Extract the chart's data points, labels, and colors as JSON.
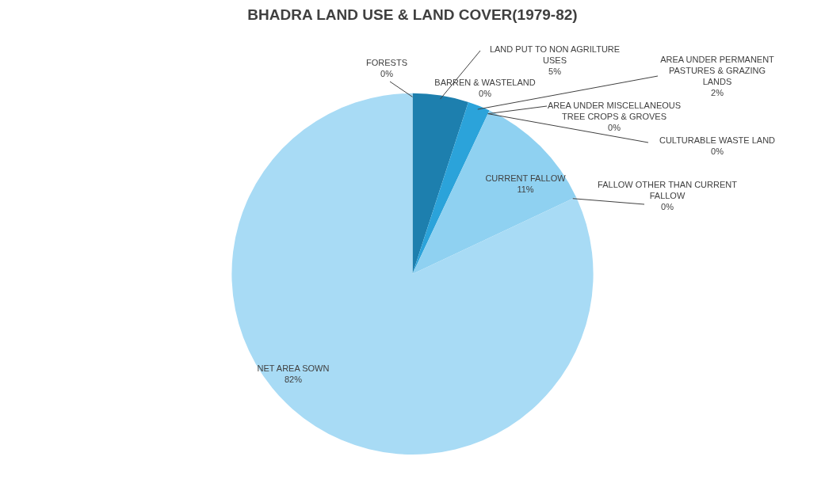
{
  "chart_data": {
    "type": "pie",
    "title": "BHADRA LAND USE & LAND COVER(1979-82)",
    "categories": [
      "FORESTS",
      "LAND PUT TO NON AGRILTURE USES",
      "BARREN & WASTELAND",
      "AREA UNDER PERMANENT PASTURES & GRAZING LANDS",
      "AREA UNDER MISCELLANEOUS TREE CROPS & GROVES",
      "CULTURABLE WASTE LAND",
      "CURRENT FALLOW",
      "FALLOW OTHER THAN CURRENT FALLOW",
      "NET AREA SOWN"
    ],
    "values": [
      0,
      5,
      0,
      2,
      0,
      0,
      11,
      0,
      82
    ],
    "colors": [
      "#1a5f80",
      "#1d7fae",
      "#2390c2",
      "#2ba3da",
      "#4db3e3",
      "#6cc2ea",
      "#8fd1f1",
      "#9dd6f3",
      "#a8dbf5"
    ],
    "value_labels": [
      "0%",
      "5%",
      "0%",
      "2%",
      "0%",
      "0%",
      "11%",
      "0%",
      "82%"
    ],
    "legend": false
  }
}
